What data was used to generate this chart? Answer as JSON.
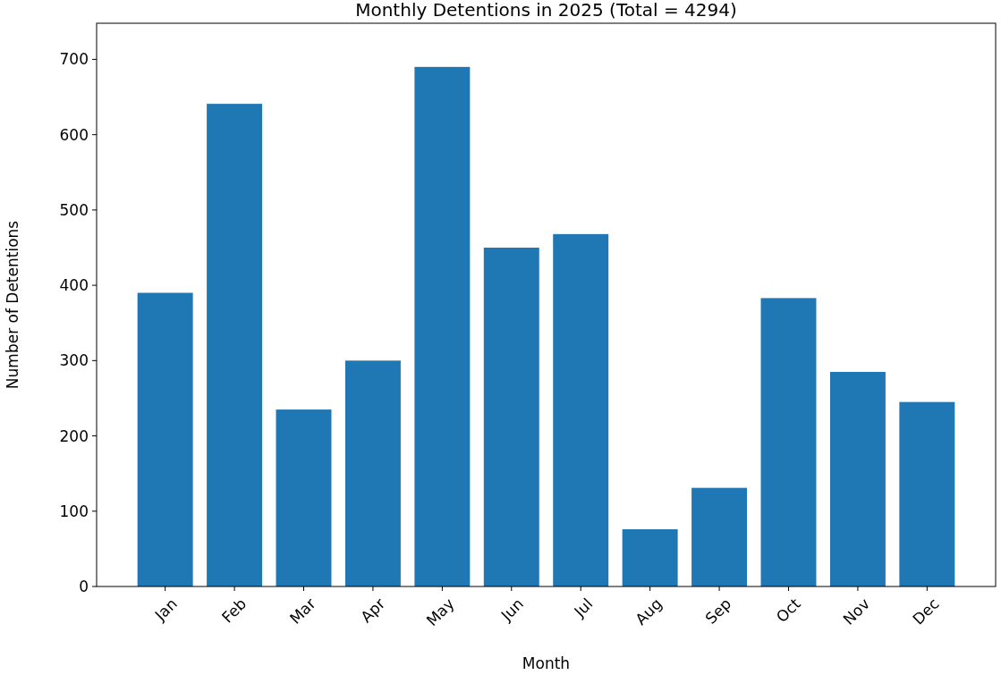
{
  "chart_data": {
    "type": "bar",
    "title": "Monthly Detentions in 2025 (Total = 4294)",
    "xlabel": "Month",
    "ylabel": "Number of Detentions",
    "categories": [
      "Jan",
      "Feb",
      "Mar",
      "Apr",
      "May",
      "Jun",
      "Jul",
      "Aug",
      "Sep",
      "Oct",
      "Nov",
      "Dec"
    ],
    "values": [
      390,
      641,
      235,
      300,
      690,
      450,
      468,
      76,
      131,
      383,
      285,
      245
    ],
    "color": "#1f77b4",
    "ylim": [
      0,
      748
    ],
    "yticks": [
      0,
      100,
      200,
      300,
      400,
      500,
      600,
      700
    ],
    "grid": false
  }
}
